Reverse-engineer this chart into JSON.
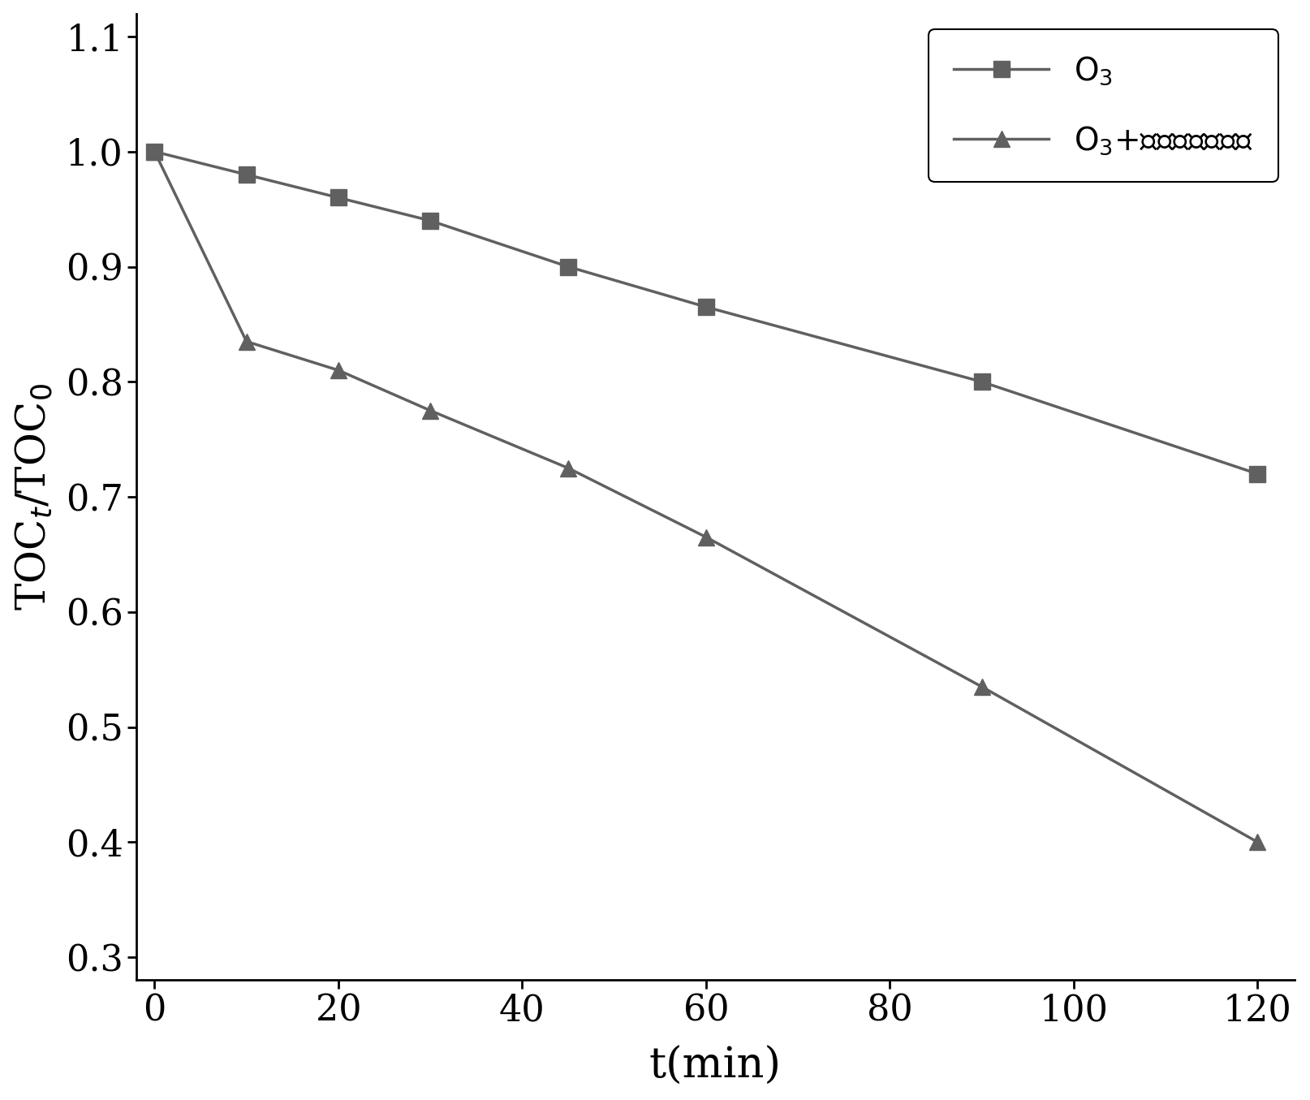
{
  "series1_label": "O$_3$",
  "series2_label": "O$_3$+锰酸镧泡沫陶瓷",
  "series1_x": [
    0,
    10,
    20,
    30,
    45,
    60,
    90,
    120
  ],
  "series1_y": [
    1.0,
    0.98,
    0.96,
    0.94,
    0.9,
    0.865,
    0.8,
    0.72
  ],
  "series2_x": [
    0,
    10,
    20,
    30,
    45,
    60,
    90,
    120
  ],
  "series2_y": [
    1.0,
    0.835,
    0.81,
    0.775,
    0.725,
    0.665,
    0.535,
    0.4
  ],
  "xlabel": "t(min)",
  "ylabel": "TOC$_t$/TOC$_0$",
  "xlim": [
    -2,
    124
  ],
  "ylim": [
    0.28,
    1.12
  ],
  "yticks": [
    0.3,
    0.4,
    0.5,
    0.6,
    0.7,
    0.8,
    0.9,
    1.0,
    1.1
  ],
  "xticks": [
    0,
    20,
    40,
    60,
    80,
    100,
    120
  ],
  "line_color": "#606060",
  "marker_size_square": 14,
  "marker_size_triangle": 15,
  "linewidth": 2.5,
  "xlabel_fontsize": 38,
  "ylabel_fontsize": 36,
  "tick_fontsize": 32,
  "legend_fontsize": 28,
  "spine_linewidth": 2.0
}
